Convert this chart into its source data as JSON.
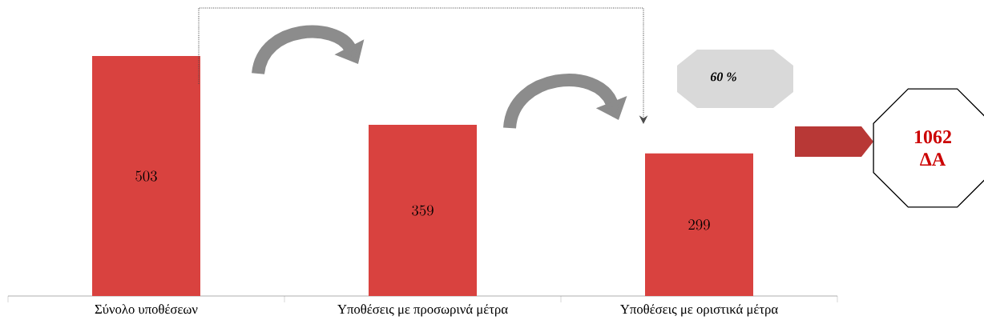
{
  "chart_data": {
    "type": "bar",
    "categories": [
      "Σύνολο υποθέσεων",
      "Υποθέσεις με προσωρινά μέτρα",
      "Υποθέσεις με οριστικά μέτρα"
    ],
    "values": [
      503,
      359,
      299
    ],
    "color": "#d9423f",
    "data_labels": true,
    "annotations": [
      "60 %",
      "1062 ΔΑ"
    ]
  }
}
